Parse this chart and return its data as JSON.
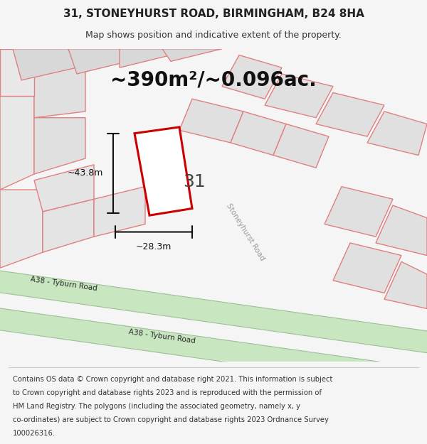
{
  "title": "31, STONEYHURST ROAD, BIRMINGHAM, B24 8HA",
  "subtitle": "Map shows position and indicative extent of the property.",
  "area_text": "~390m²/~0.096ac.",
  "label_number": "31",
  "dim_width": "~28.3m",
  "dim_height": "~43.8m",
  "road_label1": "A38 - Tyburn Road",
  "road_label2": "A38 - Tyburn Road",
  "stoneyhurst_label": "Stoneyhurst Road",
  "footer_lines": [
    "Contains OS data © Crown copyright and database right 2021. This information is subject",
    "to Crown copyright and database rights 2023 and is reproduced with the permission of",
    "HM Land Registry. The polygons (including the associated geometry, namely x, y",
    "co-ordinates) are subject to Crown copyright and database rights 2023 Ordnance Survey",
    "100026316."
  ],
  "bg_color": "#f5f5f5",
  "map_bg": "#ffffff",
  "road_green": "#c8e6c0",
  "road_border": "#9dbf98",
  "plot_color": "#cc0000",
  "other_plot_color": "#e08080",
  "dim_line_color": "#111111"
}
